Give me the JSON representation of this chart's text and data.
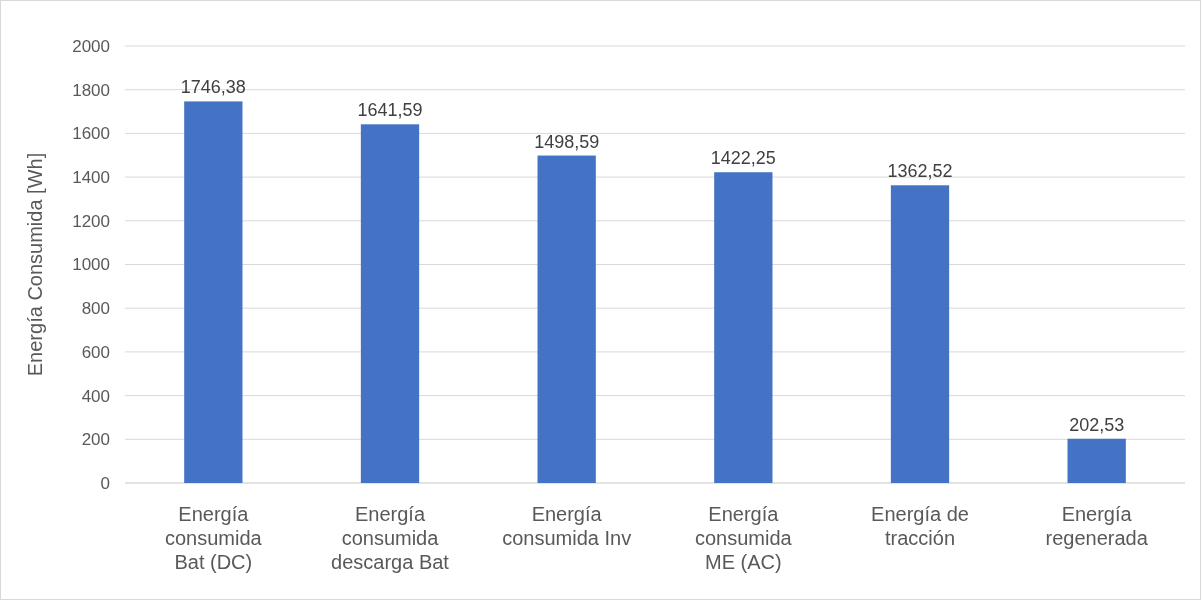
{
  "chart_data": {
    "type": "bar",
    "ylabel": "Energía Consumida [Wh]",
    "categories": [
      "Energía consumida Bat (DC)",
      "Energía consumida descarga Bat",
      "Energía consumida Inv",
      "Energía consumida ME (AC)",
      "Energía de tracción",
      "Energía regenerada"
    ],
    "values": [
      1746.38,
      1641.59,
      1498.59,
      1422.25,
      1362.52,
      202.53
    ],
    "value_labels": [
      "1746,38",
      "1641,59",
      "1498,59",
      "1422,25",
      "1362,52",
      "202,53"
    ],
    "color": "#4472c4",
    "ylim": [
      0,
      2000
    ],
    "yticks": [
      0,
      200,
      400,
      600,
      800,
      1000,
      1200,
      1400,
      1600,
      1800,
      2000
    ],
    "grid": "y"
  }
}
